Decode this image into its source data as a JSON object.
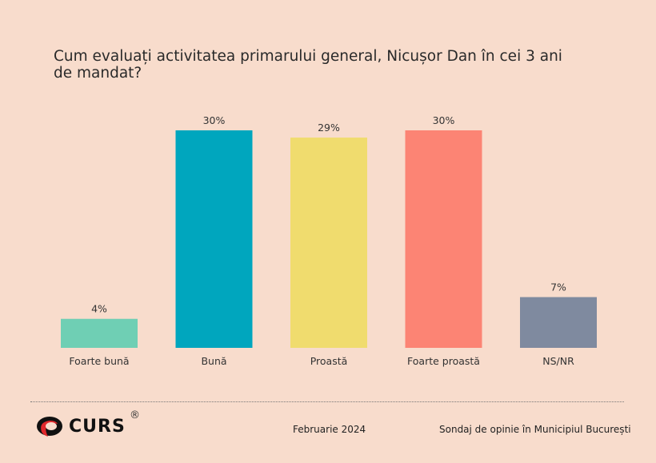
{
  "chart_data": {
    "type": "bar",
    "title": "Cum evaluați activitatea primarului general, Nicușor Dan în cei 3 ani de mandat?",
    "categories": [
      "Foarte bună",
      "Bună",
      "Proastă",
      "Foarte proastă",
      "NS/NR"
    ],
    "values": [
      4,
      30,
      29,
      30,
      7
    ],
    "data_labels": [
      "4%",
      "30%",
      "29%",
      "30%",
      "7%"
    ],
    "colors": [
      "#6fcfb4",
      "#00a6be",
      "#f0dc6e",
      "#fc8474",
      "#7f8a9f"
    ],
    "ylim": [
      0,
      30
    ],
    "grid": false,
    "xlabel": "",
    "ylabel": ""
  },
  "footer": {
    "logo": "CURS",
    "logo_mark": "®",
    "date": "Februarie 2024",
    "source": "Sondaj de opinie în Municipiul București"
  }
}
